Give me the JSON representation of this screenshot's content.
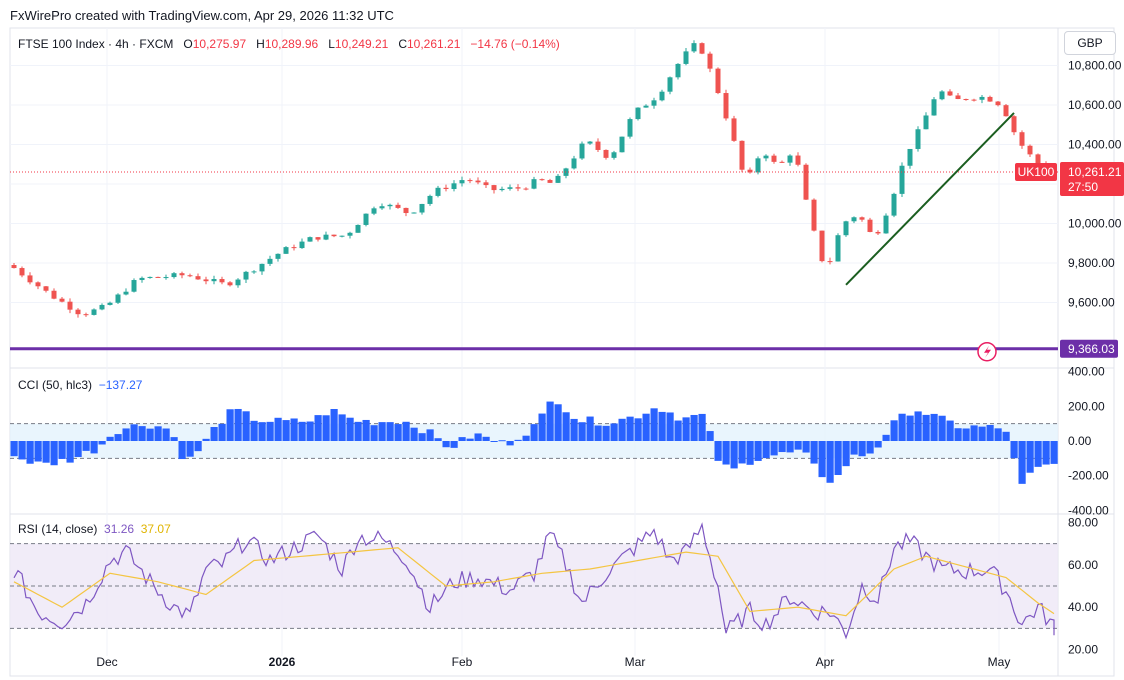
{
  "header": {
    "credit": "FxWirePro created with TradingView.com, Apr 29, 2026 11:32 UTC"
  },
  "legend": {
    "symbol": "FTSE 100 Index · 4h · FXCM",
    "o_label": "O",
    "o": "10,275.97",
    "h_label": "H",
    "h": "10,289.96",
    "l_label": "L",
    "l": "10,249.21",
    "c_label": "C",
    "c": "10,261.21",
    "chg": "−14.76 (−0.14%)"
  },
  "currency": "GBP",
  "price_tag": {
    "ticker": "UK100",
    "price": "10,261.21",
    "countdown": "27:50"
  },
  "level_tag": {
    "value": "9,366.03"
  },
  "cci_legend": {
    "label": "CCI (50, hlc3)",
    "value": "−137.27"
  },
  "rsi_legend": {
    "label": "RSI (14, close)",
    "rsi": "31.26",
    "ma": "37.07"
  },
  "colors": {
    "up": "#26a69a",
    "down": "#ef5350",
    "trend": "#1b5e20",
    "level": "#6c2fa8",
    "cci": "#2962ff",
    "rsi": "#7e57c2",
    "rsi_ma": "#f4c542",
    "last": "#f23645"
  },
  "chart_data": [
    {
      "type": "candlestick",
      "name": "FTSE 100 Index 4h",
      "x_ticks": [
        "Dec",
        "2026",
        "Feb",
        "Mar",
        "Apr",
        "May"
      ],
      "y_ticks": [
        9600,
        9800,
        10000,
        10200,
        10400,
        10600,
        10800
      ],
      "ylim": [
        9380,
        10990
      ],
      "key_points": [
        {
          "t": 0,
          "v": 9790
        },
        {
          "t": 5,
          "v": 9640
        },
        {
          "t": 9,
          "v": 9540
        },
        {
          "t": 12,
          "v": 9580
        },
        {
          "t": 16,
          "v": 9720
        },
        {
          "t": 22,
          "v": 9740
        },
        {
          "t": 27,
          "v": 9690
        },
        {
          "t": 30,
          "v": 9760
        },
        {
          "t": 34,
          "v": 9860
        },
        {
          "t": 38,
          "v": 9930
        },
        {
          "t": 42,
          "v": 9940
        },
        {
          "t": 46,
          "v": 10110
        },
        {
          "t": 50,
          "v": 10050
        },
        {
          "t": 53,
          "v": 10160
        },
        {
          "t": 57,
          "v": 10230
        },
        {
          "t": 60,
          "v": 10170
        },
        {
          "t": 64,
          "v": 10180
        },
        {
          "t": 66,
          "v": 10220
        },
        {
          "t": 68,
          "v": 10200
        },
        {
          "t": 72,
          "v": 10420
        },
        {
          "t": 75,
          "v": 10330
        },
        {
          "t": 78,
          "v": 10560
        },
        {
          "t": 81,
          "v": 10650
        },
        {
          "t": 84,
          "v": 10840
        },
        {
          "t": 86,
          "v": 10920
        },
        {
          "t": 88,
          "v": 10730
        },
        {
          "t": 90,
          "v": 10480
        },
        {
          "t": 92,
          "v": 10200
        },
        {
          "t": 94,
          "v": 10380
        },
        {
          "t": 96,
          "v": 10280
        },
        {
          "t": 98,
          "v": 10380
        },
        {
          "t": 100,
          "v": 10020
        },
        {
          "t": 102,
          "v": 9750
        },
        {
          "t": 104,
          "v": 10000
        },
        {
          "t": 106,
          "v": 10050
        },
        {
          "t": 108,
          "v": 9920
        },
        {
          "t": 110,
          "v": 10100
        },
        {
          "t": 112,
          "v": 10350
        },
        {
          "t": 114,
          "v": 10500
        },
        {
          "t": 116,
          "v": 10680
        },
        {
          "t": 118,
          "v": 10620
        },
        {
          "t": 120,
          "v": 10640
        },
        {
          "t": 122,
          "v": 10640
        },
        {
          "t": 124,
          "v": 10600
        },
        {
          "t": 126,
          "v": 10420
        },
        {
          "t": 128,
          "v": 10320
        },
        {
          "t": 130,
          "v": 10261
        }
      ],
      "last_price": 10261.21,
      "trendline": {
        "from": {
          "t": 104,
          "v": 9690
        },
        "to": {
          "t": 125,
          "v": 10560
        }
      },
      "horizontal_level": 9366.03
    },
    {
      "type": "histogram",
      "name": "CCI (50, hlc3)",
      "y_ticks": [
        -400,
        -200,
        0,
        200,
        400
      ],
      "ylim": [
        -410,
        410
      ],
      "band": [
        -100,
        100
      ],
      "key_points": [
        {
          "t": 0,
          "v": -80
        },
        {
          "t": 4,
          "v": -140
        },
        {
          "t": 8,
          "v": -100
        },
        {
          "t": 11,
          "v": -40
        },
        {
          "t": 13,
          "v": 60
        },
        {
          "t": 17,
          "v": 100
        },
        {
          "t": 20,
          "v": 70
        },
        {
          "t": 22,
          "v": -130
        },
        {
          "t": 24,
          "v": -30
        },
        {
          "t": 26,
          "v": 100
        },
        {
          "t": 28,
          "v": 180
        },
        {
          "t": 31,
          "v": 120
        },
        {
          "t": 35,
          "v": 110
        },
        {
          "t": 38,
          "v": 120
        },
        {
          "t": 40,
          "v": 180
        },
        {
          "t": 43,
          "v": 120
        },
        {
          "t": 46,
          "v": 110
        },
        {
          "t": 49,
          "v": 120
        },
        {
          "t": 52,
          "v": 60
        },
        {
          "t": 55,
          "v": -40
        },
        {
          "t": 58,
          "v": 40
        },
        {
          "t": 62,
          "v": -20
        },
        {
          "t": 66,
          "v": 100
        },
        {
          "t": 68,
          "v": 260
        },
        {
          "t": 71,
          "v": 120
        },
        {
          "t": 75,
          "v": 110
        },
        {
          "t": 78,
          "v": 140
        },
        {
          "t": 81,
          "v": 200
        },
        {
          "t": 84,
          "v": 130
        },
        {
          "t": 87,
          "v": 150
        },
        {
          "t": 88,
          "v": -80
        },
        {
          "t": 90,
          "v": -180
        },
        {
          "t": 93,
          "v": -100
        },
        {
          "t": 96,
          "v": -80
        },
        {
          "t": 99,
          "v": -60
        },
        {
          "t": 101,
          "v": -180
        },
        {
          "t": 103,
          "v": -240
        },
        {
          "t": 105,
          "v": -100
        },
        {
          "t": 108,
          "v": -60
        },
        {
          "t": 110,
          "v": 80
        },
        {
          "t": 113,
          "v": 190
        },
        {
          "t": 116,
          "v": 130
        },
        {
          "t": 119,
          "v": 80
        },
        {
          "t": 122,
          "v": 80
        },
        {
          "t": 125,
          "v": 60
        },
        {
          "t": 126,
          "v": -290
        },
        {
          "t": 128,
          "v": -170
        },
        {
          "t": 130,
          "v": -137
        }
      ]
    },
    {
      "type": "line",
      "name": "RSI (14, close)",
      "y_ticks": [
        20,
        40,
        60,
        80
      ],
      "ylim": [
        17,
        83
      ],
      "band": [
        30,
        70
      ],
      "midline": 50,
      "key_points": [
        {
          "t": 0,
          "v": 58
        },
        {
          "t": 3,
          "v": 38
        },
        {
          "t": 6,
          "v": 33
        },
        {
          "t": 9,
          "v": 42
        },
        {
          "t": 12,
          "v": 62
        },
        {
          "t": 14,
          "v": 66
        },
        {
          "t": 17,
          "v": 52
        },
        {
          "t": 20,
          "v": 40
        },
        {
          "t": 22,
          "v": 36
        },
        {
          "t": 24,
          "v": 58
        },
        {
          "t": 26,
          "v": 60
        },
        {
          "t": 29,
          "v": 72
        },
        {
          "t": 32,
          "v": 62
        },
        {
          "t": 35,
          "v": 68
        },
        {
          "t": 38,
          "v": 74
        },
        {
          "t": 41,
          "v": 58
        },
        {
          "t": 43,
          "v": 73
        },
        {
          "t": 46,
          "v": 72
        },
        {
          "t": 49,
          "v": 63
        },
        {
          "t": 52,
          "v": 40
        },
        {
          "t": 55,
          "v": 52
        },
        {
          "t": 58,
          "v": 54
        },
        {
          "t": 62,
          "v": 48
        },
        {
          "t": 65,
          "v": 56
        },
        {
          "t": 67,
          "v": 74
        },
        {
          "t": 69,
          "v": 60
        },
        {
          "t": 71,
          "v": 42
        },
        {
          "t": 74,
          "v": 56
        },
        {
          "t": 77,
          "v": 66
        },
        {
          "t": 80,
          "v": 76
        },
        {
          "t": 82,
          "v": 62
        },
        {
          "t": 84,
          "v": 66
        },
        {
          "t": 86,
          "v": 78
        },
        {
          "t": 88,
          "v": 50
        },
        {
          "t": 89,
          "v": 28
        },
        {
          "t": 92,
          "v": 38
        },
        {
          "t": 94,
          "v": 32
        },
        {
          "t": 97,
          "v": 45
        },
        {
          "t": 100,
          "v": 38
        },
        {
          "t": 102,
          "v": 38
        },
        {
          "t": 104,
          "v": 28
        },
        {
          "t": 106,
          "v": 50
        },
        {
          "t": 108,
          "v": 44
        },
        {
          "t": 110,
          "v": 68
        },
        {
          "t": 112,
          "v": 71
        },
        {
          "t": 114,
          "v": 64
        },
        {
          "t": 116,
          "v": 58
        },
        {
          "t": 119,
          "v": 57
        },
        {
          "t": 122,
          "v": 58
        },
        {
          "t": 124,
          "v": 48
        },
        {
          "t": 126,
          "v": 32
        },
        {
          "t": 128,
          "v": 40
        },
        {
          "t": 130,
          "v": 31
        }
      ],
      "ma_key_points": [
        {
          "t": 0,
          "v": 52
        },
        {
          "t": 6,
          "v": 40
        },
        {
          "t": 12,
          "v": 56
        },
        {
          "t": 18,
          "v": 52
        },
        {
          "t": 24,
          "v": 46
        },
        {
          "t": 30,
          "v": 62
        },
        {
          "t": 36,
          "v": 64
        },
        {
          "t": 42,
          "v": 66
        },
        {
          "t": 48,
          "v": 68
        },
        {
          "t": 54,
          "v": 50
        },
        {
          "t": 60,
          "v": 52
        },
        {
          "t": 66,
          "v": 56
        },
        {
          "t": 72,
          "v": 58
        },
        {
          "t": 78,
          "v": 62
        },
        {
          "t": 84,
          "v": 66
        },
        {
          "t": 88,
          "v": 64
        },
        {
          "t": 92,
          "v": 38
        },
        {
          "t": 98,
          "v": 40
        },
        {
          "t": 104,
          "v": 36
        },
        {
          "t": 110,
          "v": 58
        },
        {
          "t": 114,
          "v": 64
        },
        {
          "t": 120,
          "v": 58
        },
        {
          "t": 124,
          "v": 54
        },
        {
          "t": 128,
          "v": 42
        },
        {
          "t": 130,
          "v": 37
        }
      ]
    }
  ]
}
